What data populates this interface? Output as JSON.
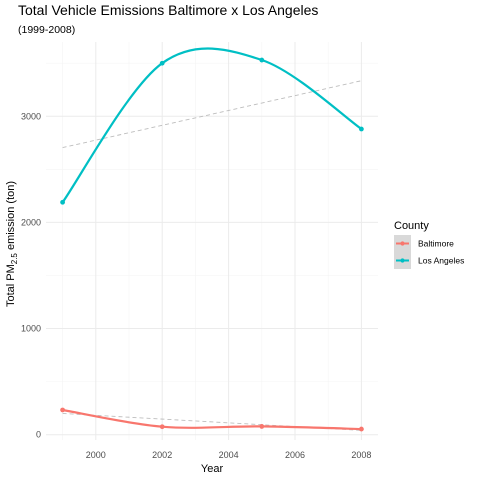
{
  "chart_data": {
    "type": "line",
    "title": "Total Vehicle Emissions Baltimore x Los Angeles",
    "subtitle": "(1999-2008)",
    "xlabel": "Year",
    "ylabel": "Total PM",
    "ylabel_sub": "2.5",
    "ylabel_suffix": " emission (ton)",
    "x": [
      1999,
      2002,
      2005,
      2008
    ],
    "xlim": [
      1998.5,
      2008.5
    ],
    "ylim": [
      -50,
      3700
    ],
    "x_ticks": [
      2000,
      2002,
      2004,
      2006,
      2008
    ],
    "y_ticks": [
      0,
      1000,
      2000,
      3000
    ],
    "grid": true,
    "legend": {
      "title": "County",
      "position": "right"
    },
    "series": [
      {
        "name": "Baltimore",
        "color": "#F8766D",
        "values": [
          233,
          75,
          78,
          53
        ],
        "trend": [
          200,
          147,
          94,
          41
        ]
      },
      {
        "name": "Los Angeles",
        "color": "#00BFC4",
        "values": [
          2190,
          3500,
          3530,
          2880
        ],
        "trend": [
          2705,
          2915,
          3125,
          3335
        ]
      }
    ],
    "trend_color": "#BDBDBD"
  }
}
